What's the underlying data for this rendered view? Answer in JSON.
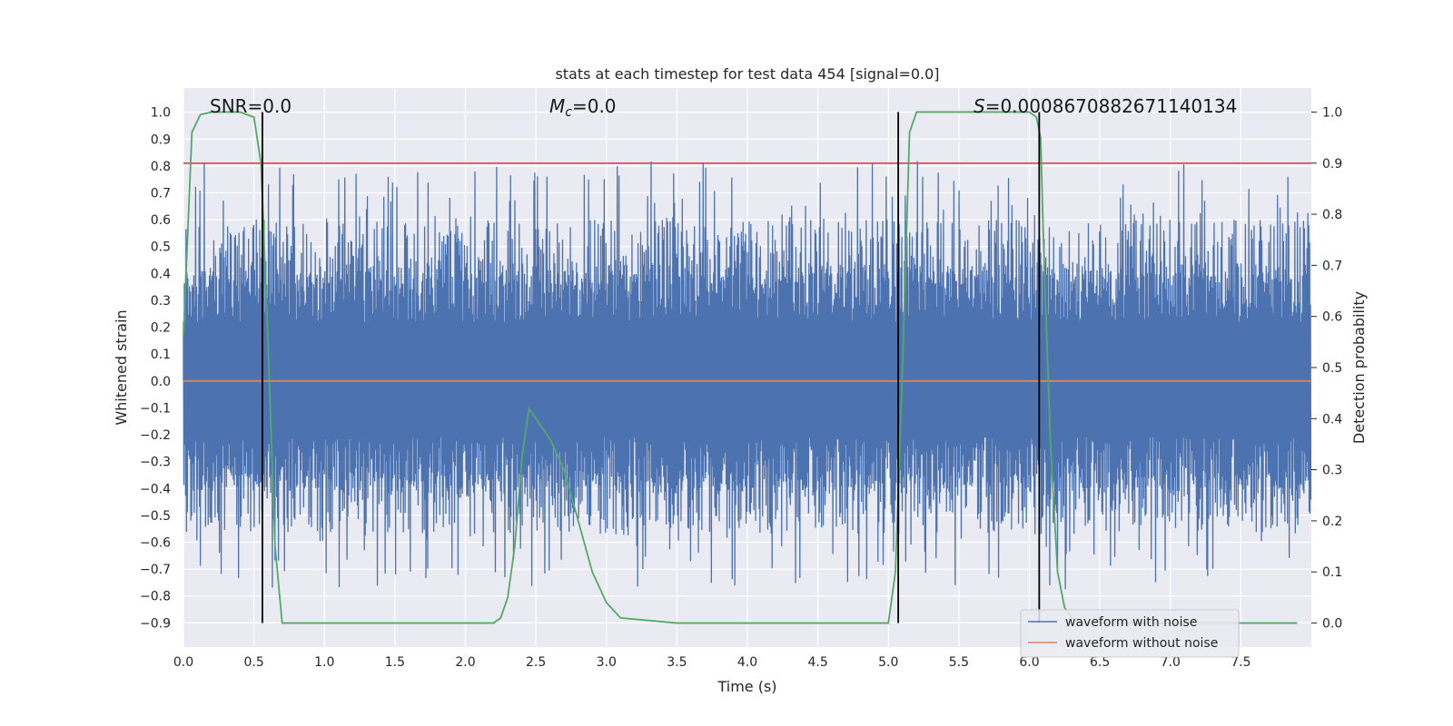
{
  "chart_data": {
    "type": "line",
    "title": "stats at each timestep for test data 454 [signal=0.0]",
    "xlabel": "Time (s)",
    "ylabel": "Whitened strain",
    "y2label": "Detection probability",
    "xlim": [
      0.0,
      8.0
    ],
    "ylim": [
      -0.99,
      1.09
    ],
    "y2lim": [
      -0.047,
      1.047
    ],
    "xticks": [
      "0.0",
      "0.5",
      "1.0",
      "1.5",
      "2.0",
      "2.5",
      "3.0",
      "3.5",
      "4.0",
      "4.5",
      "5.0",
      "5.5",
      "6.0",
      "6.5",
      "7.0",
      "7.5"
    ],
    "yticks": [
      "-0.9",
      "-0.8",
      "-0.7",
      "-0.6",
      "-0.5",
      "-0.4",
      "-0.3",
      "-0.2",
      "-0.1",
      "0.0",
      "0.1",
      "0.2",
      "0.3",
      "0.4",
      "0.5",
      "0.6",
      "0.7",
      "0.8",
      "0.9",
      "1.0"
    ],
    "y2ticks": [
      "0.0",
      "0.1",
      "0.2",
      "0.3",
      "0.4",
      "0.5",
      "0.6",
      "0.7",
      "0.8",
      "0.9",
      "1.0"
    ],
    "grid": true,
    "legend": {
      "placement": "lower-right",
      "entries": [
        {
          "label": "waveform with noise",
          "color": "#4c72b0"
        },
        {
          "label": "waveform without noise",
          "color": "#dd8452"
        }
      ]
    },
    "annotations": {
      "snr": "SNR=0.0",
      "mc_symbol": "M",
      "mc_sub": "c",
      "mc_value": "=0.0",
      "s_symbol": "S",
      "s_value": "=0.0008670882671140134"
    },
    "series": [
      {
        "name": "waveform with noise",
        "color": "#4c72b0",
        "style": "noise",
        "amplitude_range": [
          -0.9,
          0.99
        ],
        "typical_range": [
          -0.5,
          0.6
        ]
      },
      {
        "name": "waveform without noise",
        "color": "#dd8452",
        "value": 0.0
      },
      {
        "color": "#55a868",
        "axis": "right",
        "x": [
          0.0,
          0.06,
          0.12,
          0.2,
          0.3,
          0.4,
          0.5,
          0.55,
          0.6,
          0.65,
          0.7,
          0.75,
          0.8,
          0.85,
          0.9,
          1.0,
          1.5,
          2.0,
          2.1,
          2.2,
          2.25,
          2.3,
          2.35,
          2.4,
          2.45,
          2.5,
          2.6,
          2.7,
          2.8,
          2.9,
          3.0,
          3.1,
          3.5,
          4.0,
          4.5,
          4.9,
          5.0,
          5.05,
          5.1,
          5.15,
          5.2,
          5.3,
          5.5,
          6.0,
          6.05,
          6.08,
          6.1,
          6.15,
          6.2,
          6.25,
          6.3,
          6.35,
          6.5,
          7.0,
          7.5,
          7.9
        ],
        "y": [
          0.56,
          0.96,
          0.995,
          1.0,
          1.0,
          1.0,
          0.99,
          0.9,
          0.55,
          0.15,
          0.0,
          0.0,
          0.0,
          0.0,
          0.0,
          0.0,
          0.0,
          0.0,
          0.0,
          0.0,
          0.01,
          0.05,
          0.15,
          0.32,
          0.42,
          0.4,
          0.36,
          0.3,
          0.2,
          0.1,
          0.04,
          0.01,
          0.0,
          0.0,
          0.0,
          0.0,
          0.0,
          0.1,
          0.5,
          0.96,
          1.0,
          1.0,
          1.0,
          1.0,
          0.99,
          0.95,
          0.75,
          0.35,
          0.1,
          0.03,
          0.01,
          0.0,
          0.0,
          0.0,
          0.0,
          0.0
        ]
      },
      {
        "color": "#c44e52",
        "axis": "right",
        "value": 0.9
      }
    ],
    "vlines": [
      0.56,
      5.07,
      6.07
    ]
  }
}
